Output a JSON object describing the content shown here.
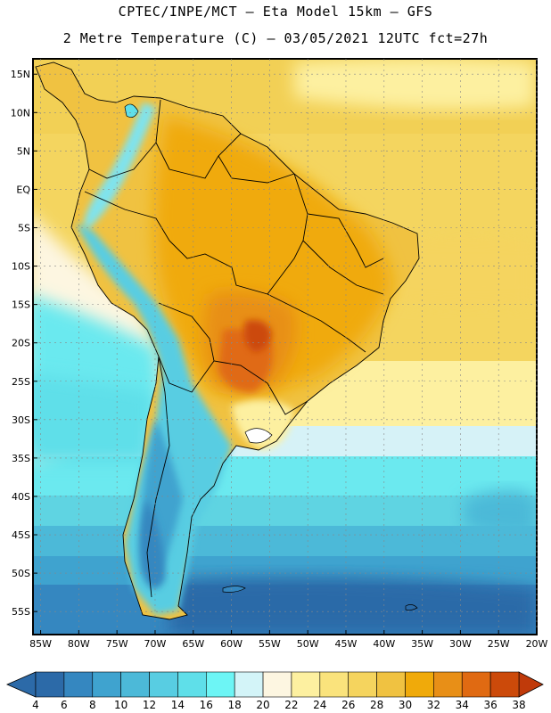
{
  "header": {
    "line1": "CPTEC/INPE/MCT –  Eta Model 15km – GFS",
    "line2": "2 Metre Temperature (C) – 03/05/2021 12UTC fct=27h"
  },
  "map": {
    "lat_labels": [
      "15N",
      "10N",
      "5N",
      "EQ",
      "5S",
      "10S",
      "15S",
      "20S",
      "25S",
      "30S",
      "35S",
      "40S",
      "45S",
      "50S",
      "55S"
    ],
    "lon_labels": [
      "85W",
      "80W",
      "75W",
      "70W",
      "65W",
      "60W",
      "55W",
      "50W",
      "45W",
      "40W",
      "35W",
      "30W",
      "25W",
      "20W"
    ],
    "lat_range": [
      17,
      -58
    ],
    "lon_range": [
      -86,
      -20
    ]
  },
  "colorbar": {
    "labels": [
      "4",
      "6",
      "8",
      "10",
      "12",
      "14",
      "16",
      "18",
      "20",
      "22",
      "24",
      "26",
      "28",
      "30",
      "32",
      "34",
      "36",
      "38"
    ],
    "colors": [
      "#2c6aa8",
      "#3587c0",
      "#3fa3cf",
      "#4cb9d8",
      "#58cde2",
      "#5fdfe9",
      "#6df5f5",
      "#d3f4f8",
      "#fdf6e1",
      "#fdf0a0",
      "#fae37c",
      "#f5d45e",
      "#f0c241",
      "#f0aa0a",
      "#e88f17",
      "#e06a12",
      "#cc4a0a"
    ],
    "low_color": "#2c6aa8",
    "high_color": "#c03a0a"
  }
}
